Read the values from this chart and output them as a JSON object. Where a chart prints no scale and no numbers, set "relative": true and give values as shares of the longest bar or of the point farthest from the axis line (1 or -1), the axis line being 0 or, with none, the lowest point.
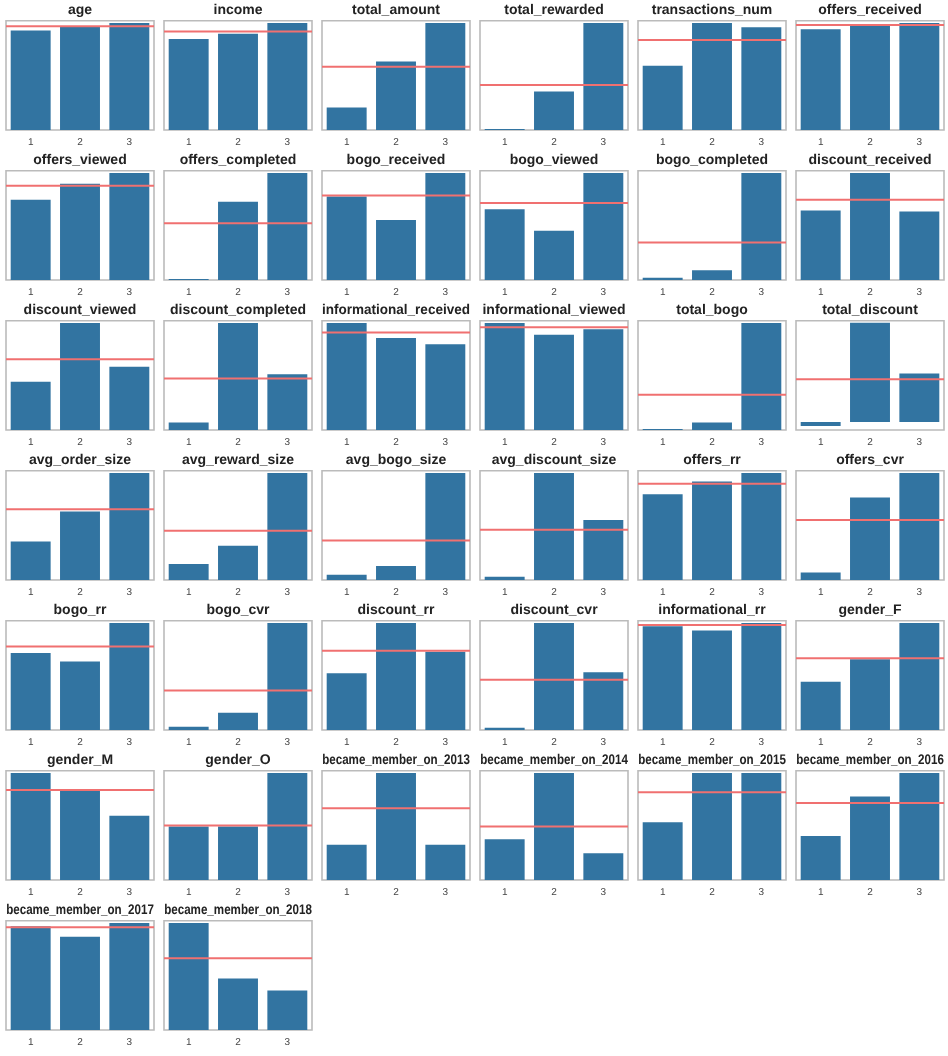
{
  "chart_data": [
    {
      "type": "bar",
      "title": "age",
      "categories": [
        "1",
        "2",
        "3"
      ],
      "values": [
        0.93,
        0.97,
        1
      ],
      "color": "#3274a1",
      "relative": true,
      "ref_lines": [
        {
          "axis": "y",
          "value": 0.97,
          "color": "#f07070"
        }
      ]
    },
    {
      "type": "bar",
      "title": "income",
      "categories": [
        "1",
        "2",
        "3"
      ],
      "values": [
        0.85,
        0.9,
        1
      ],
      "color": "#3274a1",
      "relative": true,
      "ref_lines": [
        {
          "axis": "y",
          "value": 0.92,
          "color": "#f07070"
        }
      ]
    },
    {
      "type": "bar",
      "title": "total_amount",
      "categories": [
        "1",
        "2",
        "3"
      ],
      "values": [
        0.21,
        0.64,
        1
      ],
      "color": "#3274a1",
      "relative": true,
      "ref_lines": [
        {
          "axis": "y",
          "value": 0.59,
          "color": "#f07070"
        }
      ]
    },
    {
      "type": "bar",
      "title": "total_rewarded",
      "categories": [
        "1",
        "2",
        "3"
      ],
      "values": [
        0.01,
        0.36,
        1
      ],
      "color": "#3274a1",
      "relative": true,
      "ref_lines": [
        {
          "axis": "y",
          "value": 0.42,
          "color": "#f07070"
        }
      ]
    },
    {
      "type": "bar",
      "title": "transactions_num",
      "categories": [
        "1",
        "2",
        "3"
      ],
      "values": [
        0.6,
        1,
        0.96
      ],
      "color": "#3274a1",
      "relative": true,
      "ref_lines": [
        {
          "axis": "y",
          "value": 0.84,
          "color": "#f07070"
        }
      ]
    },
    {
      "type": "bar",
      "title": "offers_received",
      "categories": [
        "1",
        "2",
        "3"
      ],
      "values": [
        0.94,
        0.99,
        1
      ],
      "color": "#3274a1",
      "relative": true,
      "ref_lines": [
        {
          "axis": "y",
          "value": 0.98,
          "color": "#f07070"
        }
      ]
    },
    {
      "type": "bar",
      "title": "offers_viewed",
      "categories": [
        "1",
        "2",
        "3"
      ],
      "values": [
        0.75,
        0.9,
        1
      ],
      "color": "#3274a1",
      "relative": true,
      "ref_lines": [
        {
          "axis": "y",
          "value": 0.88,
          "color": "#f07070"
        }
      ]
    },
    {
      "type": "bar",
      "title": "offers_completed",
      "categories": [
        "1",
        "2",
        "3"
      ],
      "values": [
        0.01,
        0.73,
        1
      ],
      "color": "#3274a1",
      "relative": true,
      "ref_lines": [
        {
          "axis": "y",
          "value": 0.53,
          "color": "#f07070"
        }
      ]
    },
    {
      "type": "bar",
      "title": "bogo_received",
      "categories": [
        "1",
        "2",
        "3"
      ],
      "values": [
        0.78,
        0.56,
        1
      ],
      "color": "#3274a1",
      "relative": true,
      "ref_lines": [
        {
          "axis": "y",
          "value": 0.79,
          "color": "#f07070"
        }
      ]
    },
    {
      "type": "bar",
      "title": "bogo_viewed",
      "categories": [
        "1",
        "2",
        "3"
      ],
      "values": [
        0.66,
        0.46,
        1
      ],
      "color": "#3274a1",
      "relative": true,
      "ref_lines": [
        {
          "axis": "y",
          "value": 0.72,
          "color": "#f07070"
        }
      ]
    },
    {
      "type": "bar",
      "title": "bogo_completed",
      "categories": [
        "1",
        "2",
        "3"
      ],
      "values": [
        0.02,
        0.09,
        1
      ],
      "color": "#3274a1",
      "relative": true,
      "ref_lines": [
        {
          "axis": "y",
          "value": 0.35,
          "color": "#f07070"
        }
      ]
    },
    {
      "type": "bar",
      "title": "discount_received",
      "categories": [
        "1",
        "2",
        "3"
      ],
      "values": [
        0.65,
        1,
        0.64
      ],
      "color": "#3274a1",
      "relative": true,
      "ref_lines": [
        {
          "axis": "y",
          "value": 0.75,
          "color": "#f07070"
        }
      ]
    },
    {
      "type": "bar",
      "title": "discount_viewed",
      "categories": [
        "1",
        "2",
        "3"
      ],
      "values": [
        0.45,
        1,
        0.59
      ],
      "color": "#3274a1",
      "relative": true,
      "ref_lines": [
        {
          "axis": "y",
          "value": 0.66,
          "color": "#f07070"
        }
      ]
    },
    {
      "type": "bar",
      "title": "discount_completed",
      "categories": [
        "1",
        "2",
        "3"
      ],
      "values": [
        0.07,
        1,
        0.52
      ],
      "color": "#3274a1",
      "relative": true,
      "ref_lines": [
        {
          "axis": "y",
          "value": 0.48,
          "color": "#f07070"
        }
      ]
    },
    {
      "type": "bar",
      "title": "informational_received",
      "categories": [
        "1",
        "2",
        "3"
      ],
      "values": [
        1,
        0.86,
        0.8
      ],
      "color": "#3274a1",
      "relative": true,
      "ref_lines": [
        {
          "axis": "y",
          "value": 0.91,
          "color": "#f07070"
        }
      ]
    },
    {
      "type": "bar",
      "title": "informational_viewed",
      "categories": [
        "1",
        "2",
        "3"
      ],
      "values": [
        1,
        0.89,
        0.94
      ],
      "color": "#3274a1",
      "relative": true,
      "ref_lines": [
        {
          "axis": "y",
          "value": 0.96,
          "color": "#f07070"
        }
      ]
    },
    {
      "type": "bar",
      "title": "total_bogo",
      "categories": [
        "1",
        "2",
        "3"
      ],
      "values": [
        0.01,
        0.07,
        1
      ],
      "color": "#3274a1",
      "relative": true,
      "ref_lines": [
        {
          "axis": "y",
          "value": 0.33,
          "color": "#f07070"
        }
      ]
    },
    {
      "type": "bar",
      "title": "total_discount",
      "categories": [
        "1",
        "2",
        "3"
      ],
      "values": [
        -0.04,
        1,
        0.49
      ],
      "color": "#3274a1",
      "relative": true,
      "ref_lines": [
        {
          "axis": "y",
          "value": 0.43,
          "color": "#f07070"
        }
      ]
    },
    {
      "type": "bar",
      "title": "avg_order_size",
      "categories": [
        "1",
        "2",
        "3"
      ],
      "values": [
        0.36,
        0.64,
        1
      ],
      "color": "#3274a1",
      "relative": true,
      "ref_lines": [
        {
          "axis": "y",
          "value": 0.66,
          "color": "#f07070"
        }
      ]
    },
    {
      "type": "bar",
      "title": "avg_reward_size",
      "categories": [
        "1",
        "2",
        "3"
      ],
      "values": [
        0.15,
        0.32,
        1
      ],
      "color": "#3274a1",
      "relative": true,
      "ref_lines": [
        {
          "axis": "y",
          "value": 0.46,
          "color": "#f07070"
        }
      ]
    },
    {
      "type": "bar",
      "title": "avg_bogo_size",
      "categories": [
        "1",
        "2",
        "3"
      ],
      "values": [
        0.05,
        0.13,
        1
      ],
      "color": "#3274a1",
      "relative": true,
      "ref_lines": [
        {
          "axis": "y",
          "value": 0.37,
          "color": "#f07070"
        }
      ]
    },
    {
      "type": "bar",
      "title": "avg_discount_size",
      "categories": [
        "1",
        "2",
        "3"
      ],
      "values": [
        0.03,
        1,
        0.56
      ],
      "color": "#3274a1",
      "relative": true,
      "ref_lines": [
        {
          "axis": "y",
          "value": 0.47,
          "color": "#f07070"
        }
      ]
    },
    {
      "type": "bar",
      "title": "offers_rr",
      "categories": [
        "1",
        "2",
        "3"
      ],
      "values": [
        0.8,
        0.92,
        1
      ],
      "color": "#3274a1",
      "relative": true,
      "ref_lines": [
        {
          "axis": "y",
          "value": 0.9,
          "color": "#f07070"
        }
      ]
    },
    {
      "type": "bar",
      "title": "offers_cvr",
      "categories": [
        "1",
        "2",
        "3"
      ],
      "values": [
        0.07,
        0.77,
        1
      ],
      "color": "#3274a1",
      "relative": true,
      "ref_lines": [
        {
          "axis": "y",
          "value": 0.56,
          "color": "#f07070"
        }
      ]
    },
    {
      "type": "bar",
      "title": "bogo_rr",
      "categories": [
        "1",
        "2",
        "3"
      ],
      "values": [
        0.72,
        0.64,
        1
      ],
      "color": "#3274a1",
      "relative": true,
      "ref_lines": [
        {
          "axis": "y",
          "value": 0.78,
          "color": "#f07070"
        }
      ]
    },
    {
      "type": "bar",
      "title": "bogo_cvr",
      "categories": [
        "1",
        "2",
        "3"
      ],
      "values": [
        0.03,
        0.16,
        1
      ],
      "color": "#3274a1",
      "relative": true,
      "ref_lines": [
        {
          "axis": "y",
          "value": 0.37,
          "color": "#f07070"
        }
      ]
    },
    {
      "type": "bar",
      "title": "discount_rr",
      "categories": [
        "1",
        "2",
        "3"
      ],
      "values": [
        0.53,
        1,
        0.73
      ],
      "color": "#3274a1",
      "relative": true,
      "ref_lines": [
        {
          "axis": "y",
          "value": 0.74,
          "color": "#f07070"
        }
      ]
    },
    {
      "type": "bar",
      "title": "discount_cvr",
      "categories": [
        "1",
        "2",
        "3"
      ],
      "values": [
        0.02,
        1,
        0.54
      ],
      "color": "#3274a1",
      "relative": true,
      "ref_lines": [
        {
          "axis": "y",
          "value": 0.47,
          "color": "#f07070"
        }
      ]
    },
    {
      "type": "bar",
      "title": "informational_rr",
      "categories": [
        "1",
        "2",
        "3"
      ],
      "values": [
        0.97,
        0.93,
        1
      ],
      "color": "#3274a1",
      "relative": true,
      "ref_lines": [
        {
          "axis": "y",
          "value": 0.98,
          "color": "#f07070"
        }
      ]
    },
    {
      "type": "bar",
      "title": "gender_F",
      "categories": [
        "1",
        "2",
        "3"
      ],
      "values": [
        0.45,
        0.66,
        1
      ],
      "color": "#3274a1",
      "relative": true,
      "ref_lines": [
        {
          "axis": "y",
          "value": 0.67,
          "color": "#f07070"
        }
      ]
    },
    {
      "type": "bar",
      "title": "gender_M",
      "categories": [
        "1",
        "2",
        "3"
      ],
      "values": [
        1,
        0.85,
        0.6
      ],
      "color": "#3274a1",
      "relative": true,
      "ref_lines": [
        {
          "axis": "y",
          "value": 0.84,
          "color": "#f07070"
        }
      ]
    },
    {
      "type": "bar",
      "title": "gender_O",
      "categories": [
        "1",
        "2",
        "3"
      ],
      "values": [
        0.5,
        0.5,
        1
      ],
      "color": "#3274a1",
      "relative": true,
      "ref_lines": [
        {
          "axis": "y",
          "value": 0.51,
          "color": "#f07070"
        }
      ]
    },
    {
      "type": "bar",
      "title": "became_member_on_2013",
      "categories": [
        "1",
        "2",
        "3"
      ],
      "values": [
        0.33,
        1,
        0.33
      ],
      "color": "#3274a1",
      "relative": true,
      "ref_lines": [
        {
          "axis": "y",
          "value": 0.67,
          "color": "#f07070"
        }
      ]
    },
    {
      "type": "bar",
      "title": "became_member_on_2014",
      "categories": [
        "1",
        "2",
        "3"
      ],
      "values": [
        0.38,
        1,
        0.25
      ],
      "color": "#3274a1",
      "relative": true,
      "ref_lines": [
        {
          "axis": "y",
          "value": 0.5,
          "color": "#f07070"
        }
      ]
    },
    {
      "type": "bar",
      "title": "became_member_on_2015",
      "categories": [
        "1",
        "2",
        "3"
      ],
      "values": [
        0.54,
        1,
        1
      ],
      "color": "#3274a1",
      "relative": true,
      "ref_lines": [
        {
          "axis": "y",
          "value": 0.82,
          "color": "#f07070"
        }
      ]
    },
    {
      "type": "bar",
      "title": "became_member_on_2016",
      "categories": [
        "1",
        "2",
        "3"
      ],
      "values": [
        0.41,
        0.78,
        1
      ],
      "color": "#3274a1",
      "relative": true,
      "ref_lines": [
        {
          "axis": "y",
          "value": 0.72,
          "color": "#f07070"
        }
      ]
    },
    {
      "type": "bar",
      "title": "became_member_on_2017",
      "categories": [
        "1",
        "2",
        "3"
      ],
      "values": [
        0.97,
        0.87,
        1
      ],
      "color": "#3274a1",
      "relative": true,
      "ref_lines": [
        {
          "axis": "y",
          "value": 0.96,
          "color": "#f07070"
        }
      ]
    },
    {
      "type": "bar",
      "title": "became_member_on_2018",
      "categories": [
        "1",
        "2",
        "3"
      ],
      "values": [
        1,
        0.48,
        0.37
      ],
      "color": "#3274a1",
      "relative": true,
      "ref_lines": [
        {
          "axis": "y",
          "value": 0.67,
          "color": "#f07070"
        }
      ]
    }
  ]
}
